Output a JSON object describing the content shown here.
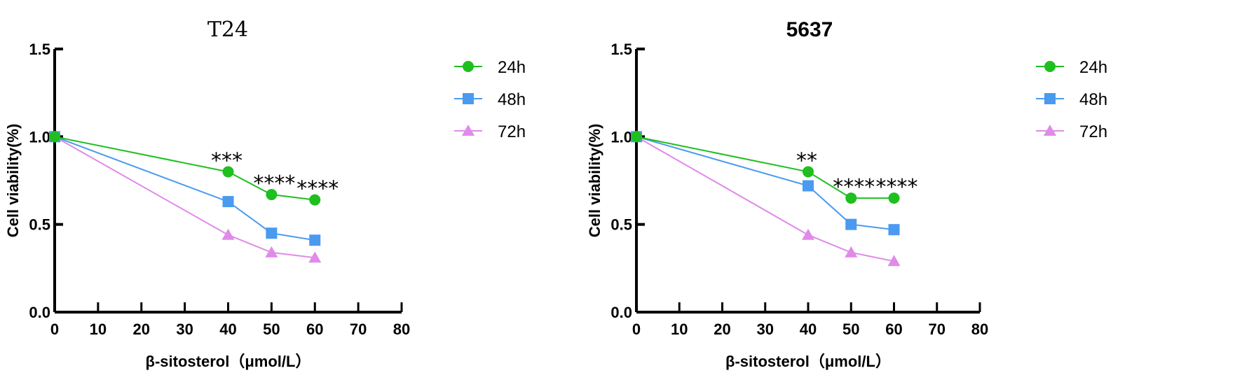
{
  "chart_data": [
    {
      "type": "line",
      "title": "T24",
      "xlabel": "β-sitosterol（μmol/L）",
      "ylabel": "Cell viability(%)",
      "xlim": [
        0,
        80
      ],
      "ylim": [
        0,
        1.5
      ],
      "xticks": [
        "0",
        "10",
        "20",
        "30",
        "40",
        "50",
        "60",
        "70",
        "80"
      ],
      "yticks": [
        "0.0",
        "0.5",
        "1.0",
        "1.5"
      ],
      "grid": false,
      "legend_position": "right",
      "x": [
        0,
        40,
        50,
        60
      ],
      "series": [
        {
          "name": "24h",
          "color": "#1fbf1f",
          "marker": "circle",
          "values": [
            1.0,
            0.8,
            0.67,
            0.64
          ]
        },
        {
          "name": "48h",
          "color": "#4a9af0",
          "marker": "square",
          "values": [
            1.0,
            0.63,
            0.45,
            0.41
          ]
        },
        {
          "name": "72h",
          "color": "#e08be8",
          "marker": "triangle",
          "values": [
            1.0,
            0.44,
            0.34,
            0.31
          ]
        }
      ],
      "annotations": [
        {
          "x": 40,
          "text": "***"
        },
        {
          "x": 50,
          "text": "****"
        },
        {
          "x": 60,
          "text": "****"
        }
      ]
    },
    {
      "type": "line",
      "title": "5637",
      "xlabel": "β-sitosterol（μmol/L）",
      "ylabel": "Cell viability(%)",
      "xlim": [
        0,
        80
      ],
      "ylim": [
        0,
        1.5
      ],
      "xticks": [
        "0",
        "10",
        "20",
        "30",
        "40",
        "50",
        "60",
        "70",
        "80"
      ],
      "yticks": [
        "0.0",
        "0.5",
        "1.0",
        "1.5"
      ],
      "grid": false,
      "legend_position": "right",
      "x": [
        0,
        40,
        50,
        60
      ],
      "series": [
        {
          "name": "24h",
          "color": "#1fbf1f",
          "marker": "circle",
          "values": [
            1.0,
            0.8,
            0.65,
            0.65
          ]
        },
        {
          "name": "48h",
          "color": "#4a9af0",
          "marker": "square",
          "values": [
            1.0,
            0.72,
            0.5,
            0.47
          ]
        },
        {
          "name": "72h",
          "color": "#e08be8",
          "marker": "triangle",
          "values": [
            1.0,
            0.44,
            0.34,
            0.29
          ]
        }
      ],
      "annotations": [
        {
          "x": 40,
          "text": "**"
        },
        {
          "x": 50,
          "text": "****"
        },
        {
          "x": 60,
          "text": "****"
        }
      ]
    }
  ]
}
